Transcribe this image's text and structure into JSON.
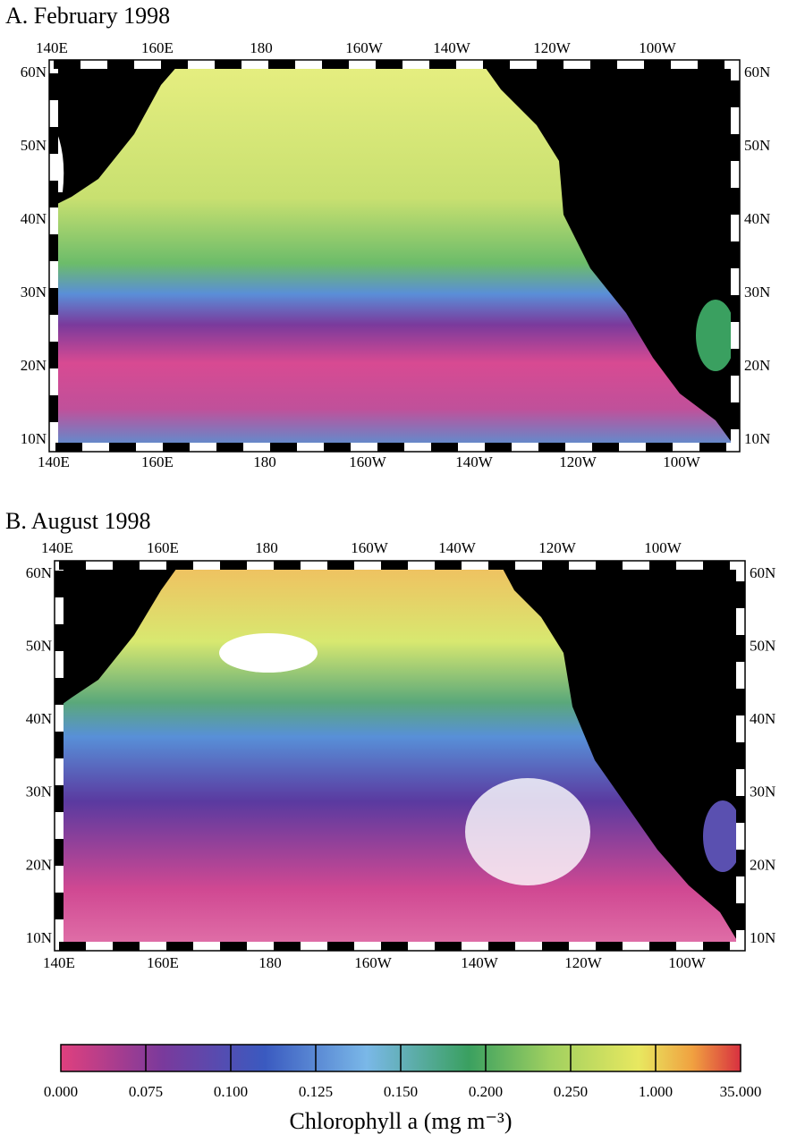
{
  "panels": [
    {
      "title": "A. February 1998",
      "top_labels": [
        "140E",
        "160E",
        "180",
        "160W",
        "140W",
        "120W",
        "100W"
      ],
      "bottom_labels": [
        "140E",
        "160E",
        "180",
        "160W",
        "140W",
        "120W",
        "100W"
      ],
      "left_labels": [
        "60N",
        "50N",
        "40N",
        "30N",
        "20N",
        "10N"
      ],
      "right_labels": [
        "60N",
        "50N",
        "40N",
        "30N",
        "20N",
        "10N"
      ]
    },
    {
      "title": "B. August 1998",
      "top_labels": [
        "140E",
        "160E",
        "180",
        "160W",
        "140W",
        "120W",
        "100W"
      ],
      "bottom_labels": [
        "140E",
        "160E",
        "180",
        "160W",
        "140W",
        "120W",
        "100W"
      ],
      "left_labels": [
        "60N",
        "50N",
        "40N",
        "30N",
        "20N",
        "10N"
      ],
      "right_labels": [
        "60N",
        "50N",
        "40N",
        "30N",
        "20N",
        "10N"
      ]
    }
  ],
  "colorbar": {
    "ticks": [
      "0.000",
      "0.075",
      "0.100",
      "0.125",
      "0.150",
      "0.200",
      "0.250",
      "1.000",
      "35.000"
    ],
    "label": "Chlorophyll a (mg m⁻³)"
  }
}
